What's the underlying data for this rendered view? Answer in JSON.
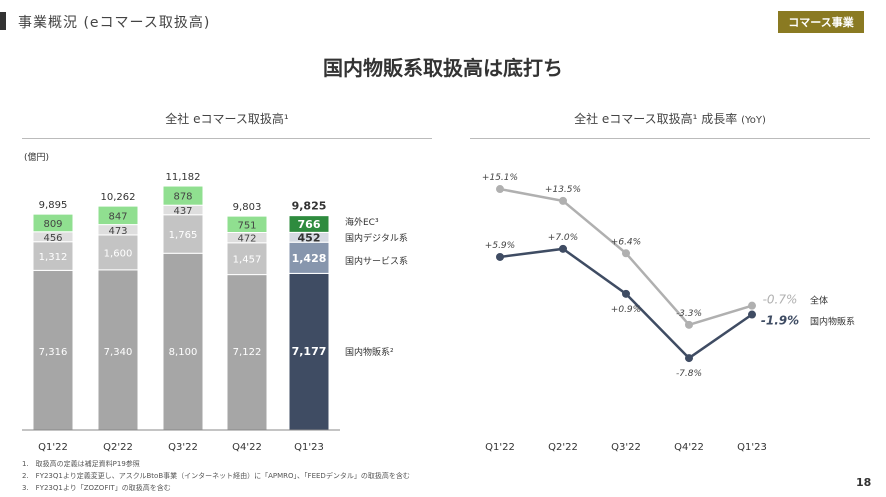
{
  "header": {
    "title": "事業概況 (eコマース取扱高)",
    "badge": "コマース事業",
    "headline": "国内物販系取扱高は底打ち"
  },
  "footnotes": [
    "1.　取扱高の定義は補足資料P19参照",
    "2.　FY23Q1より定義変更し、アスクルBtoB事業（インターネット経由）に「APMRO」、「FEEDデンタル」の取扱高を含む",
    "3.　FY23Q1より「ZOZOFIT」の取扱高を含む"
  ],
  "page_number": "18",
  "colors": {
    "badge": "#8a7a22",
    "past_base": "#a6a6a6",
    "past_service": "#c4c4c4",
    "past_digital": "#dedede",
    "past_overseas": "#90df90",
    "cur_base": "#3f4c63",
    "cur_service": "#8796ad",
    "cur_digital": "#d5dae2",
    "cur_overseas": "#2e8b3e",
    "line_total": "#b0b0b0",
    "line_domestic": "#3f4c63"
  },
  "chart_data": [
    {
      "type": "bar",
      "stacked": true,
      "title": "全社 eコマース取扱高¹",
      "unit": "(億円)",
      "categories": [
        "Q1'22",
        "Q2'22",
        "Q3'22",
        "Q4'22",
        "Q1'23"
      ],
      "series": [
        {
          "name": "国内物販系²",
          "values": [
            7316,
            7340,
            8100,
            7122,
            7177
          ]
        },
        {
          "name": "国内サービス系",
          "values": [
            1312,
            1600,
            1765,
            1457,
            1428
          ]
        },
        {
          "name": "国内デジタル系",
          "values": [
            456,
            473,
            437,
            472,
            452
          ]
        },
        {
          "name": "海外EC³",
          "values": [
            809,
            847,
            878,
            751,
            766
          ]
        }
      ],
      "totals": [
        "9,895",
        "10,262",
        "11,182",
        "9,803",
        "9,825"
      ],
      "labels": [
        [
          "7,316",
          "1,312",
          "456",
          "809"
        ],
        [
          "7,340",
          "1,600",
          "473",
          "847"
        ],
        [
          "8,100",
          "1,765",
          "437",
          "878"
        ],
        [
          "7,122",
          "1,457",
          "472",
          "751"
        ],
        [
          "7,177",
          "1,428",
          "452",
          "766"
        ]
      ],
      "ylim": [
        0,
        11182
      ]
    },
    {
      "type": "line",
      "title": "全社 eコマース取扱高¹ 成長率",
      "title_suffix": "(YoY)",
      "categories": [
        "Q1'22",
        "Q2'22",
        "Q3'22",
        "Q4'22",
        "Q1'23"
      ],
      "series": [
        {
          "name": "全体",
          "values": [
            15.1,
            13.5,
            6.4,
            -3.3,
            -0.7
          ],
          "labels": [
            "+15.1%",
            "+13.5%",
            "+6.4%",
            "-3.3%",
            "-0.7%"
          ]
        },
        {
          "name": "国内物販系",
          "values": [
            5.9,
            7.0,
            0.9,
            -7.8,
            -1.9
          ],
          "labels": [
            "+5.9%",
            "+7.0%",
            "+0.9%",
            "-7.8%",
            "-1.9%"
          ]
        }
      ]
    }
  ]
}
